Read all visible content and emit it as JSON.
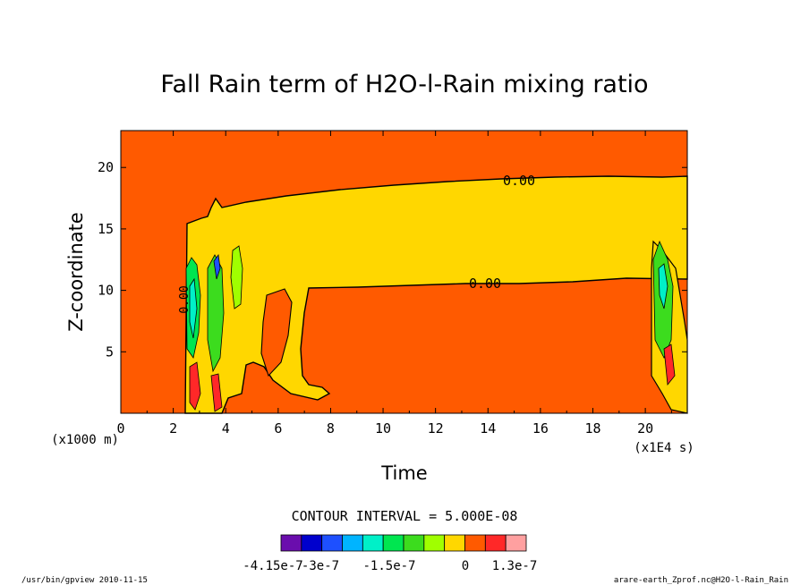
{
  "chart_data": {
    "type": "contour",
    "title": "Fall Rain term of H2O-l-Rain mixing ratio",
    "xlabel": "Time",
    "ylabel": "Z-coordinate",
    "x_unit_label": "(x1E4 s)",
    "y_unit_label": "(x1000 m)",
    "xlim": [
      0,
      21.6
    ],
    "ylim": [
      0,
      23
    ],
    "x_ticks": [
      0,
      2,
      4,
      6,
      8,
      10,
      12,
      14,
      16,
      18,
      20
    ],
    "y_ticks": [
      5,
      10,
      15,
      20
    ],
    "contour_labels": [
      "0.00",
      "0.00",
      "0.00"
    ],
    "contour_interval_text": "CONTOUR INTERVAL = 5.000E-08",
    "colorbar": {
      "colors": [
        "#6a0dad",
        "#0000cd",
        "#1e50ff",
        "#00b4ff",
        "#00f0c8",
        "#00e650",
        "#3cdc1e",
        "#a0ff00",
        "#ffd700",
        "#ff5a00",
        "#ff2828",
        "#ffa0a0"
      ],
      "tick_labels": [
        "-4.15e-7",
        "-3e-7",
        "-1.5e-7",
        "0",
        "1.3e-7"
      ]
    },
    "background_color": "#ff5a00",
    "band_color": "#ffd700"
  },
  "footer": {
    "left": "/usr/bin/gpview   2010-11-15",
    "right": "arare-earth_Zprof.nc@H2O-l-Rain_Rain"
  }
}
